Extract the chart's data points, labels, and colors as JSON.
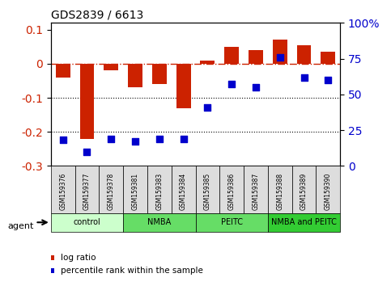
{
  "title": "GDS2839 / 6613",
  "samples": [
    "GSM159376",
    "GSM159377",
    "GSM159378",
    "GSM159381",
    "GSM159383",
    "GSM159384",
    "GSM159385",
    "GSM159386",
    "GSM159387",
    "GSM159388",
    "GSM159389",
    "GSM159390"
  ],
  "log_ratio": [
    -0.04,
    -0.22,
    -0.02,
    -0.07,
    -0.06,
    -0.13,
    0.01,
    0.05,
    0.04,
    0.07,
    0.055,
    0.035
  ],
  "percentile_rank": [
    18,
    10,
    19,
    17,
    19,
    19,
    41,
    57,
    55,
    76,
    62,
    60
  ],
  "groups": [
    {
      "label": "control",
      "start": 0,
      "end": 3,
      "color": "#ccffcc"
    },
    {
      "label": "NMBA",
      "start": 3,
      "end": 6,
      "color": "#66dd66"
    },
    {
      "label": "PEITC",
      "start": 6,
      "end": 9,
      "color": "#66dd66"
    },
    {
      "label": "NMBA and PEITC",
      "start": 9,
      "end": 12,
      "color": "#33cc33"
    }
  ],
  "bar_color": "#cc2200",
  "dot_color": "#0000cc",
  "ylim_left": [
    -0.3,
    0.12
  ],
  "ylim_right": [
    0,
    100
  ],
  "yticks_left": [
    -0.3,
    -0.2,
    -0.1,
    0.0,
    0.1
  ],
  "yticks_right": [
    0,
    25,
    50,
    75,
    100
  ],
  "hline_y": 0.0,
  "dotted_lines": [
    -0.1,
    -0.2
  ],
  "agent_label": "agent",
  "legend_log": "log ratio",
  "legend_pct": "percentile rank within the sample"
}
